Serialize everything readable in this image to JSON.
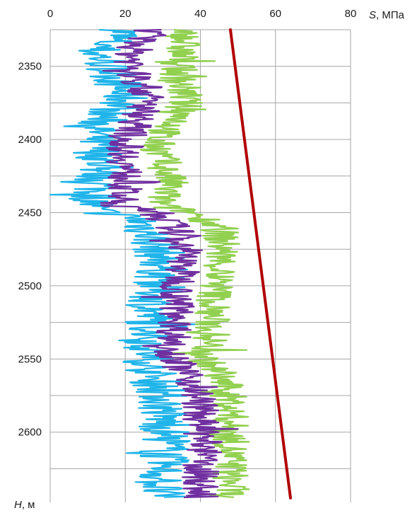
{
  "chart_data": {
    "type": "line",
    "orientation": "depth-profile",
    "x_axis_position": "top",
    "y_axis_reversed": true,
    "grid": true,
    "x_ticks": [
      0,
      20,
      40,
      60,
      80
    ],
    "y_ticks": [
      2350,
      2400,
      2450,
      2500,
      2550,
      2600
    ],
    "xlim": [
      0,
      80
    ],
    "ylim": [
      2325,
      2648
    ],
    "xlabel": {
      "var": "S",
      "unit": ", МПа"
    },
    "ylabel": {
      "var": "H",
      "unit": ", м"
    },
    "colors": {
      "light_blue": "#1fb4ea",
      "green": "#92d050",
      "purple": "#7030a0",
      "red": "#b00000",
      "grid": "#a6a6a6"
    },
    "series": [
      {
        "color": "#1fb4ea",
        "line": "jagged",
        "profile": [
          [
            2325,
            20
          ],
          [
            2340,
            12
          ],
          [
            2350,
            16
          ],
          [
            2360,
            18
          ],
          [
            2375,
            20
          ],
          [
            2385,
            14
          ],
          [
            2400,
            12
          ],
          [
            2415,
            14
          ],
          [
            2430,
            13
          ],
          [
            2440,
            12
          ],
          [
            2448,
            11
          ],
          [
            2455,
            24
          ],
          [
            2470,
            28
          ],
          [
            2485,
            30
          ],
          [
            2500,
            29
          ],
          [
            2515,
            27
          ],
          [
            2530,
            27
          ],
          [
            2545,
            26
          ],
          [
            2560,
            27
          ],
          [
            2575,
            30
          ],
          [
            2590,
            30
          ],
          [
            2605,
            31
          ],
          [
            2620,
            30
          ],
          [
            2635,
            29
          ],
          [
            2645,
            29
          ]
        ]
      },
      {
        "color": "#92d050",
        "line": "jagged",
        "profile": [
          [
            2325,
            36
          ],
          [
            2340,
            35
          ],
          [
            2355,
            34
          ],
          [
            2370,
            36
          ],
          [
            2385,
            35
          ],
          [
            2400,
            28
          ],
          [
            2415,
            30
          ],
          [
            2430,
            32
          ],
          [
            2445,
            29
          ],
          [
            2450,
            38
          ],
          [
            2460,
            45
          ],
          [
            2475,
            46
          ],
          [
            2490,
            45
          ],
          [
            2505,
            44
          ],
          [
            2520,
            43
          ],
          [
            2535,
            43
          ],
          [
            2550,
            41
          ],
          [
            2565,
            46
          ],
          [
            2580,
            48
          ],
          [
            2595,
            48
          ],
          [
            2610,
            48
          ],
          [
            2625,
            48
          ],
          [
            2640,
            48
          ],
          [
            2645,
            47
          ]
        ]
      },
      {
        "color": "#7030a0",
        "line": "jagged",
        "profile": [
          [
            2325,
            26
          ],
          [
            2340,
            22
          ],
          [
            2355,
            22
          ],
          [
            2370,
            26
          ],
          [
            2385,
            24
          ],
          [
            2400,
            20
          ],
          [
            2415,
            20
          ],
          [
            2430,
            20
          ],
          [
            2445,
            18
          ],
          [
            2450,
            28
          ],
          [
            2460,
            33
          ],
          [
            2475,
            36
          ],
          [
            2490,
            35
          ],
          [
            2505,
            34
          ],
          [
            2520,
            34
          ],
          [
            2535,
            33
          ],
          [
            2550,
            33
          ],
          [
            2565,
            38
          ],
          [
            2580,
            40
          ],
          [
            2595,
            40
          ],
          [
            2610,
            41
          ],
          [
            2625,
            40
          ],
          [
            2640,
            40
          ],
          [
            2645,
            40
          ]
        ]
      },
      {
        "color": "#b00000",
        "line": "straight",
        "profile": [
          [
            2325,
            48
          ],
          [
            2645,
            64
          ]
        ]
      }
    ]
  }
}
